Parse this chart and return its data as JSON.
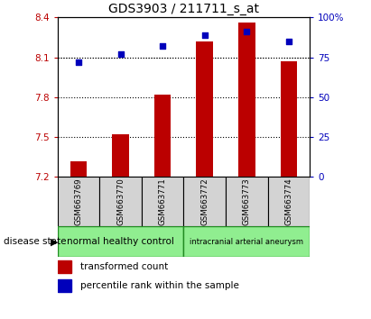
{
  "title": "GDS3903 / 211711_s_at",
  "samples": [
    "GSM663769",
    "GSM663770",
    "GSM663771",
    "GSM663772",
    "GSM663773",
    "GSM663774"
  ],
  "transformed_counts": [
    7.32,
    7.52,
    7.82,
    8.22,
    8.36,
    8.07
  ],
  "percentile_ranks": [
    72,
    77,
    82,
    89,
    91,
    85
  ],
  "ylim_left": [
    7.2,
    8.4
  ],
  "ylim_right": [
    0,
    100
  ],
  "yticks_left": [
    7.2,
    7.5,
    7.8,
    8.1,
    8.4
  ],
  "yticks_right": [
    0,
    25,
    50,
    75,
    100
  ],
  "bar_color": "#bb0000",
  "dot_color": "#0000bb",
  "bar_width": 0.4,
  "group1_label": "normal healthy control",
  "group2_label": "intracranial arterial aneurysm",
  "group_color": "#90ee90",
  "group_edge_color": "#228B22",
  "label_bg_color": "#d3d3d3",
  "legend_bar_label": "transformed count",
  "legend_dot_label": "percentile rank within the sample",
  "fig_width": 4.11,
  "fig_height": 3.54,
  "dpi": 100
}
